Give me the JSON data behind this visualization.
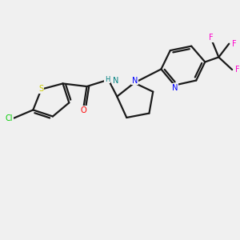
{
  "background_color": "#f0f0f0",
  "bond_color": "#1a1a1a",
  "atom_colors": {
    "Cl": "#00cc00",
    "S": "#cccc00",
    "O": "#ff0000",
    "N_amide": "#008080",
    "N_ring": "#0000ff",
    "N_pyridine": "#0000ff",
    "F": "#ff00cc",
    "C": "#1a1a1a"
  },
  "figsize": [
    3.0,
    3.0
  ],
  "dpi": 100,
  "xlim": [
    0,
    10
  ],
  "ylim": [
    0,
    10
  ]
}
